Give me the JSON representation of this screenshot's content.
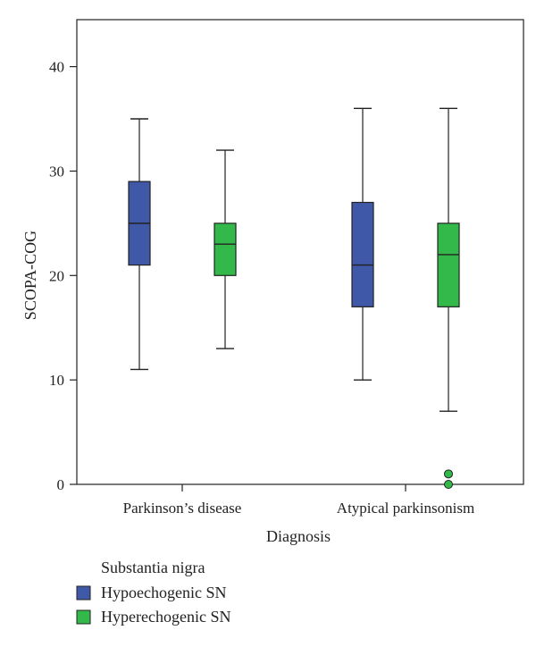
{
  "chart_data": {
    "type": "boxplot",
    "xlabel": "Diagnosis",
    "ylabel": "SCOPA-COG",
    "ylim": [
      0,
      44.5
    ],
    "yticks": [
      0,
      10,
      20,
      30,
      40
    ],
    "yticklabels": [
      "0",
      "10",
      "20",
      "30",
      "40"
    ],
    "categories": [
      "Parkinson’s disease",
      "Atypical parkinsonism"
    ],
    "legend": {
      "title": "Substantia nigra",
      "position": "bottom-left"
    },
    "series": [
      {
        "name": "Hypoechogenic SN",
        "color": "#3f58a8",
        "boxes": [
          {
            "min": 11,
            "q1": 21,
            "median": 25,
            "q3": 29,
            "max": 35,
            "outliers": []
          },
          {
            "min": 10,
            "q1": 17,
            "median": 21,
            "q3": 27,
            "max": 36,
            "outliers": []
          }
        ]
      },
      {
        "name": "Hyperechogenic SN",
        "color": "#33b84a",
        "boxes": [
          {
            "min": 13,
            "q1": 20,
            "median": 23,
            "q3": 25,
            "max": 32,
            "outliers": []
          },
          {
            "min": 7,
            "q1": 17,
            "median": 22,
            "q3": 25,
            "max": 36,
            "outliers": [
              1,
              0
            ]
          }
        ]
      }
    ]
  }
}
